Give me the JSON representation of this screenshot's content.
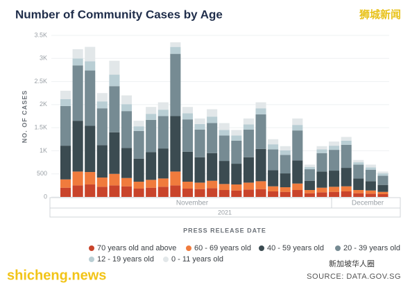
{
  "chart_data": {
    "type": "stacked_bar",
    "title": "Number of Community Cases by Age",
    "y_label": "NO. OF CASES",
    "x_label": "PRESS RELEASE DATE",
    "months": [
      "November",
      "December"
    ],
    "year": "2021",
    "watermarks": [
      "狮城新闻",
      "shicheng.news",
      "新加坡华人圈"
    ],
    "source": "SOURCE: DATA.GOV.SG",
    "categories": [
      null,
      null,
      null,
      null,
      null,
      null,
      null,
      null,
      null,
      null,
      null,
      null,
      null,
      null,
      null,
      null,
      null,
      null,
      null,
      null,
      null,
      null,
      null,
      null,
      null,
      null,
      null
    ],
    "ylim": [
      0,
      3500
    ],
    "yticks": [
      0,
      500,
      {
        "value": 1000,
        "label": "1K"
      },
      {
        "value": 1500,
        "label": "1.5K"
      },
      {
        "value": 2000,
        "label": "2K"
      },
      {
        "value": 2500,
        "label": "2.5K"
      },
      {
        "value": 3000,
        "label": "3K"
      },
      {
        "value": 3500,
        "label": "3.5K"
      }
    ],
    "grid": true,
    "legend": "bottom",
    "series": [
      {
        "name": "70 years old and above",
        "color": "#c9442b",
        "values": [
          200,
          250,
          270,
          220,
          250,
          230,
          180,
          200,
          220,
          250,
          180,
          170,
          190,
          150,
          140,
          160,
          170,
          120,
          110,
          150,
          80,
          100,
          110,
          120,
          80,
          70,
          60
        ]
      },
      {
        "name": "60 - 69 years old",
        "color": "#f07b3d",
        "values": [
          180,
          300,
          270,
          200,
          250,
          180,
          150,
          170,
          180,
          300,
          150,
          140,
          160,
          130,
          130,
          150,
          170,
          110,
          100,
          140,
          70,
          100,
          110,
          110,
          70,
          70,
          50
        ]
      },
      {
        "name": "40 - 59 years old",
        "color": "#3b4b51",
        "values": [
          730,
          1100,
          1000,
          700,
          900,
          650,
          500,
          600,
          650,
          1200,
          650,
          550,
          600,
          500,
          450,
          550,
          700,
          350,
          300,
          500,
          200,
          350,
          350,
          400,
          250,
          200,
          150
        ]
      },
      {
        "name": "20 - 39 years old",
        "color": "#768b93",
        "values": [
          860,
          1200,
          1200,
          800,
          1000,
          800,
          600,
          700,
          700,
          1350,
          700,
          600,
          650,
          550,
          500,
          600,
          750,
          450,
          400,
          650,
          250,
          400,
          450,
          500,
          300,
          250,
          200
        ]
      },
      {
        "name": "12 - 19 years old",
        "color": "#b9ced4",
        "values": [
          150,
          150,
          200,
          150,
          250,
          150,
          100,
          130,
          140,
          150,
          130,
          120,
          140,
          120,
          110,
          110,
          130,
          110,
          100,
          120,
          50,
          80,
          90,
          90,
          50,
          50,
          50
        ]
      },
      {
        "name": "0 - 11 years old",
        "color": "#e2e7e9",
        "values": [
          180,
          200,
          310,
          180,
          300,
          190,
          120,
          150,
          160,
          100,
          140,
          120,
          160,
          150,
          120,
          130,
          130,
          110,
          90,
          140,
          50,
          70,
          90,
          80,
          50,
          60,
          40
        ]
      }
    ]
  }
}
